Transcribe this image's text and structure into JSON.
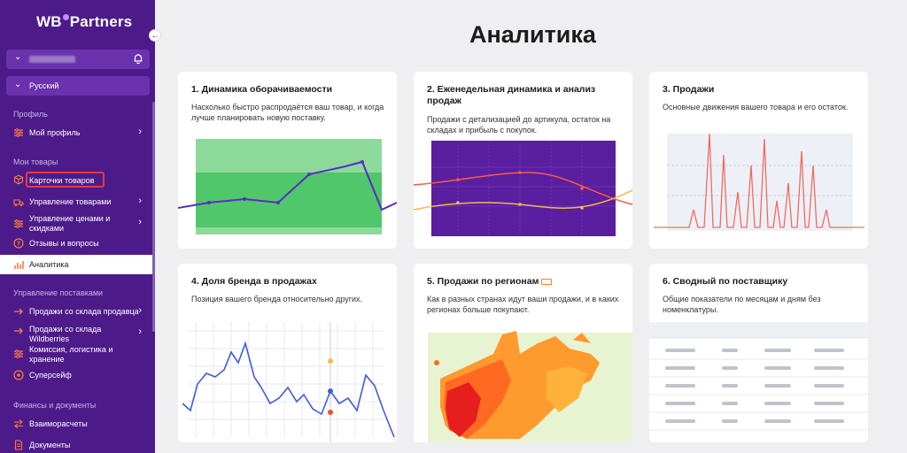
{
  "app": {
    "logo_text_1": "WB",
    "logo_text_2": "Partners"
  },
  "sidebar": {
    "language": "Русский",
    "sections": {
      "profile": "Профиль",
      "my_goods": "Мои товары",
      "supply": "Управление поставками",
      "finance": "Финансы и документы"
    },
    "items": {
      "my_profile": "Мой профиль",
      "product_cards": "Карточки товаров",
      "goods_management": "Управление товарами",
      "price_management": "Управление ценами и скидками",
      "reviews": "Отзывы и вопросы",
      "analytics": "Аналитика",
      "sales_seller": "Продажи со склада продавца",
      "sales_wb": "Продажи со склада Wildberries",
      "commission": "Комиссия, логистика и хранение",
      "supersafe": "Суперсейф",
      "settlements": "Взаиморасчеты",
      "documents": "Документы"
    }
  },
  "main": {
    "title": "Аналитика",
    "cards": [
      {
        "title": "1. Динамика оборачиваемости",
        "desc": "Насколько быстро распродаётся ваш товар, и когда лучше планировать новую поставку."
      },
      {
        "title": "2. Еженедельная динамика и анализ продаж",
        "desc": "Продажи с детализацией до артикула, остаток на складах и прибыль с покупок."
      },
      {
        "title": "3. Продажи",
        "desc": "Основные движения вашего товара и его остаток."
      },
      {
        "title": "4. Доля бренда в продажах",
        "desc": "Позиция вашего бренда относительно других."
      },
      {
        "title": "5. Продажи по регионам",
        "desc": "Как в разных странах идут ваши продажи, и в каких регионах больше покупают."
      },
      {
        "title": "6. Сводный по поставщику",
        "desc": "Общие показатели по месяцам и дням без номенклатуры."
      }
    ]
  },
  "icons": {
    "bell": "bell-icon",
    "collapse": "arrow-left-icon",
    "chevron": "chevron-down-icon",
    "arrow_right": "chevron-right-icon"
  },
  "colors": {
    "sidebar": "#4d1a8a",
    "accent": "#ff7a3d",
    "green": "#4fc76a",
    "purple": "#5a1ea0"
  }
}
